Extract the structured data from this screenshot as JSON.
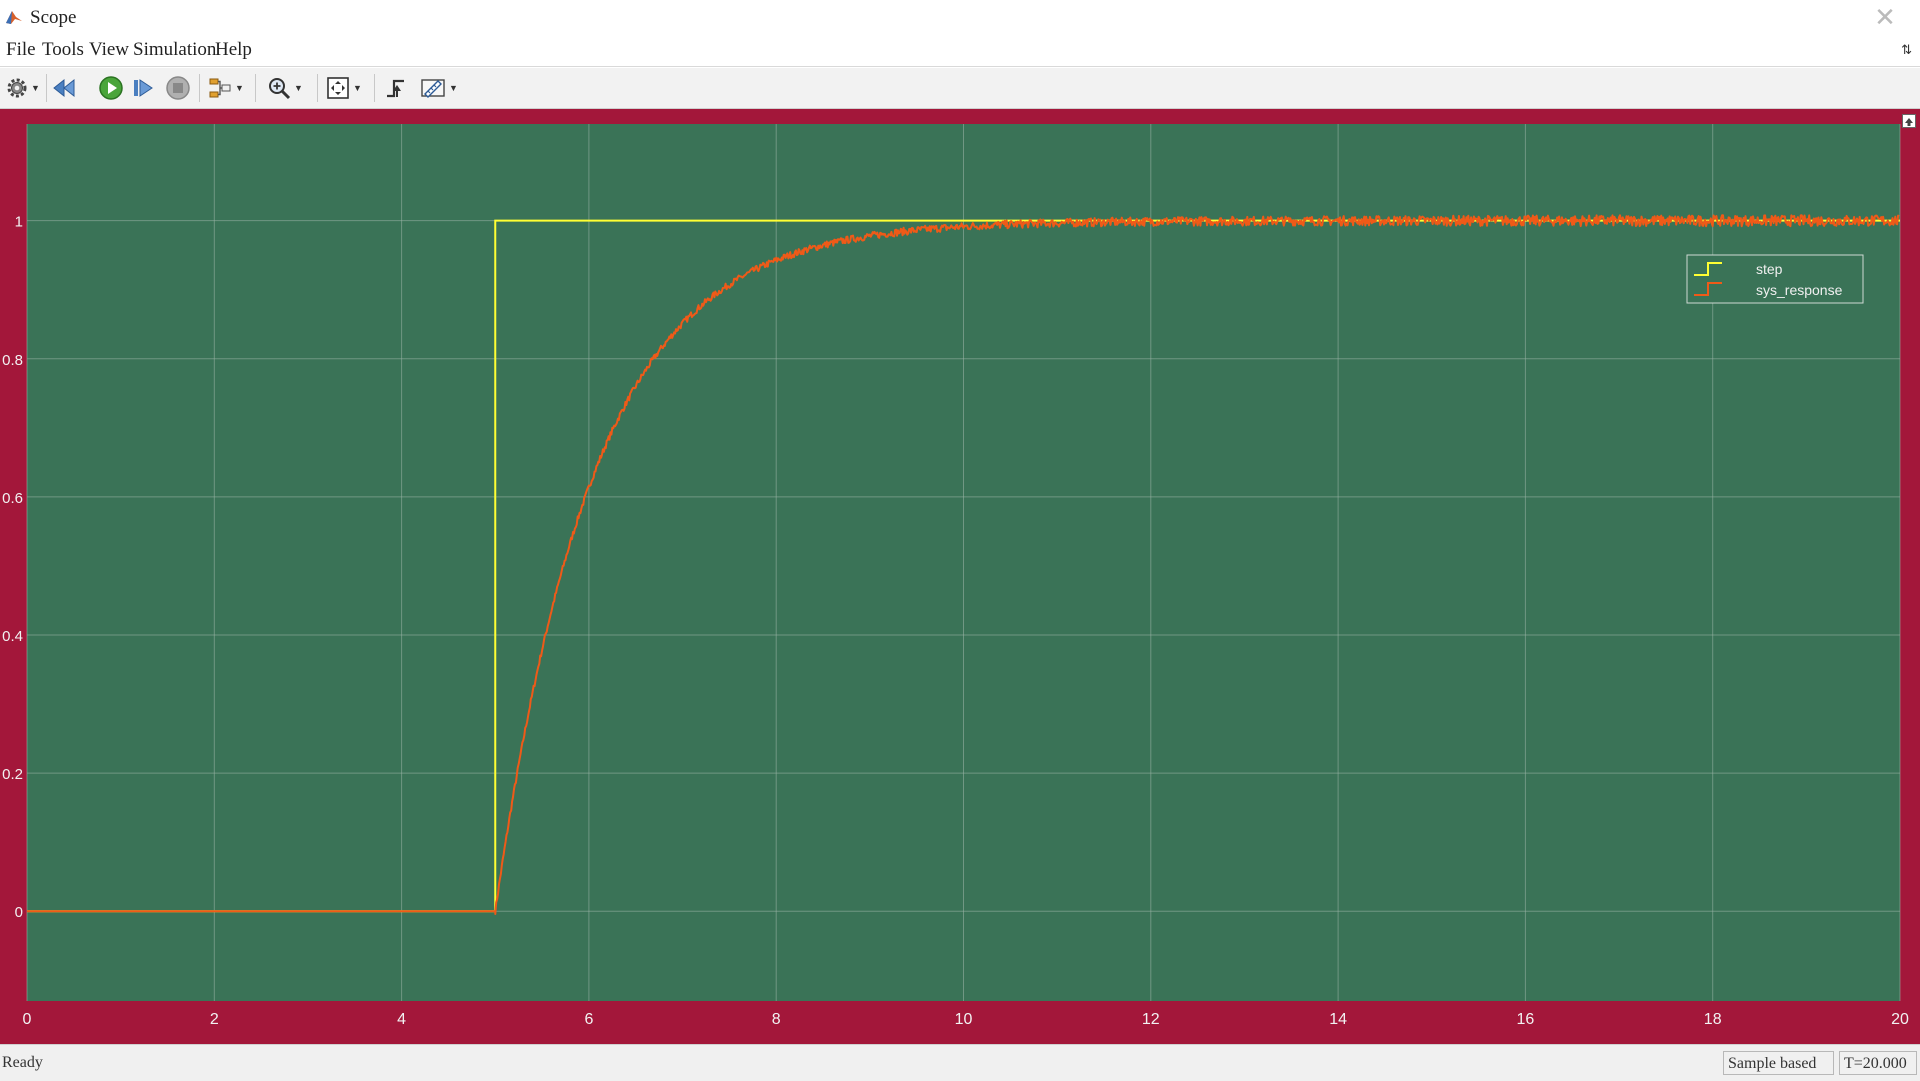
{
  "window": {
    "title": "Scope",
    "close_glyph": "✕"
  },
  "menu": {
    "items": [
      "File",
      "Tools",
      "View",
      "Simulation",
      "Help"
    ]
  },
  "toolbar": {
    "icons": [
      "gear-icon",
      "step-back-icon",
      "run-icon",
      "step-forward-icon",
      "stop-icon",
      "signal-selector-icon",
      "zoom-icon",
      "fit-to-view-icon",
      "trigger-icon",
      "measurements-icon"
    ]
  },
  "colors": {
    "frame": "#a3173a",
    "plot_background": "#3a7357",
    "grid": "#9db5a8",
    "axis_text": "#f2f2f2",
    "step": "#ffff33",
    "sys_response": "#ef5a18"
  },
  "chart_data": {
    "type": "line",
    "xlim": [
      0,
      20
    ],
    "ylim": [
      -0.13,
      1.14
    ],
    "x_ticks": [
      "0",
      "2",
      "4",
      "6",
      "8",
      "10",
      "12",
      "14",
      "16",
      "18",
      "20"
    ],
    "y_ticks": [
      "0",
      "0.2",
      "0.4",
      "0.6",
      "0.8",
      "1"
    ],
    "grid": true,
    "legend_position": "top-right",
    "series": [
      {
        "name": "step",
        "kind": "step",
        "step_time": 5,
        "initial": 0,
        "final": 1
      },
      {
        "name": "sys_response",
        "kind": "first-order",
        "step_time": 5,
        "time_constant": 1.05,
        "final": 1,
        "noise": true,
        "samples": [
          [
            0,
            0
          ],
          [
            5,
            0
          ],
          [
            5.5,
            0.38
          ],
          [
            6,
            0.62
          ],
          [
            7,
            0.85
          ],
          [
            8,
            0.94
          ],
          [
            10,
            0.99
          ],
          [
            12,
            1.0
          ],
          [
            20,
            1.0
          ]
        ]
      }
    ]
  },
  "status": {
    "text": "Ready",
    "mode": "Sample based",
    "time": "T=20.000"
  }
}
